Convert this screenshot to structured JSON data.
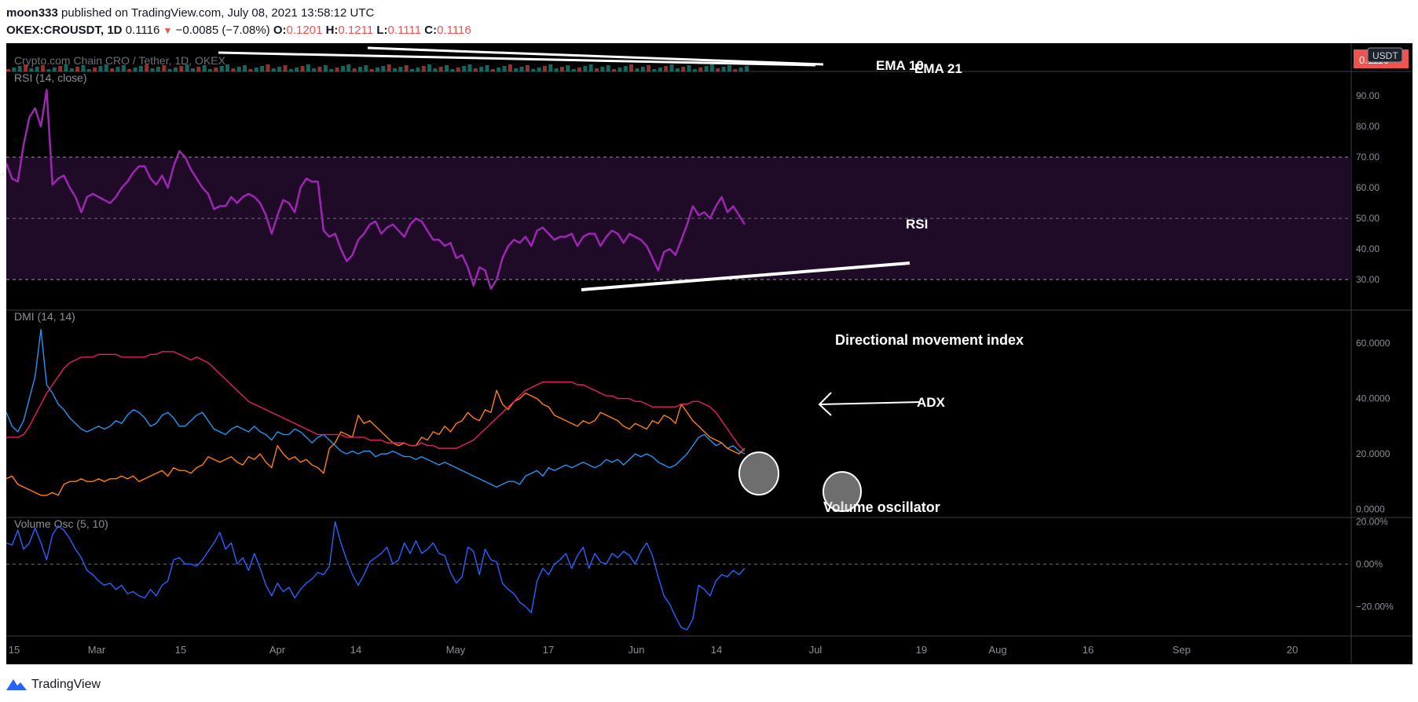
{
  "header": {
    "author": "moon333",
    "published": "published on TradingView.com, July 08, 2021 13:58:12 UTC",
    "symbol": "OKEX:CROUSDT, 1D",
    "last": "0.1116",
    "change": "−0.0085 (−7.08%)",
    "o_label": "O:",
    "o_value": "0.1201",
    "h_label": "H:",
    "h_value": "0.1211",
    "l_label": "L:",
    "l_value": "0.1111",
    "c_label": "C:",
    "c_value": "0.1116"
  },
  "price_pane": {
    "legend": "Crypto.com Chain CRO / Tether, 1D, OKEX",
    "ema_labels": [
      "EMA 10",
      "EMA 21"
    ],
    "currency_badge": "USDT",
    "price_badge": "0.1116"
  },
  "colors": {
    "background": "#000000",
    "rsi": "#9c27b0",
    "rsi_band": "#1f0a28",
    "dmi_plus": "#2196f3",
    "dmi_minus": "#ff7f0e",
    "adx": "#e91e63",
    "volosc": "#2962ff",
    "grid": "#2a2e39",
    "axis_text": "#8a8e98"
  },
  "x_axis": {
    "labels": [
      "15",
      "Mar",
      "15",
      "Apr",
      "14",
      "May",
      "17",
      "Jun",
      "14",
      "Jul",
      "19",
      "Aug",
      "16",
      "Sep",
      "20"
    ]
  },
  "annotations": {
    "rsi": "RSI",
    "dmi": "Directional movement index",
    "adx": "ADX",
    "volosc": "Volume oscillator"
  },
  "chart_data": [
    {
      "type": "line",
      "title": "RSI (14, close)",
      "ylim": [
        20,
        98
      ],
      "yticks": [
        "90.00",
        "80.00",
        "70.00",
        "60.00",
        "50.00",
        "40.00",
        "30.00"
      ],
      "ytick_values": [
        90,
        80,
        70,
        60,
        50,
        40,
        30
      ],
      "bands": [
        30,
        70
      ],
      "midline": 50,
      "series": [
        {
          "values": [
            68,
            63,
            62,
            74,
            83,
            86,
            80,
            92,
            61,
            63,
            64,
            60,
            57,
            52,
            57,
            58,
            57,
            56,
            55,
            57,
            60,
            62,
            65,
            67,
            67,
            63,
            61,
            64,
            60,
            67,
            72,
            70,
            66,
            63,
            60,
            58,
            53,
            54,
            54,
            57,
            55,
            57,
            58,
            57,
            55,
            51,
            45,
            51,
            56,
            55,
            52,
            60,
            63,
            62,
            62,
            46,
            44,
            45,
            40,
            36,
            38,
            43,
            45,
            48,
            49,
            45,
            47,
            48,
            46,
            44,
            48,
            50,
            49,
            46,
            43,
            43,
            41,
            42,
            37,
            38,
            34,
            28,
            34,
            33,
            27,
            30,
            37,
            41,
            43,
            42,
            44,
            41,
            46,
            47,
            45,
            43,
            44,
            44,
            45,
            41,
            44,
            45,
            45,
            41,
            44,
            46,
            45,
            42,
            45,
            44,
            43,
            41,
            37,
            33,
            39,
            40,
            38,
            43,
            48,
            54,
            51,
            52,
            50,
            54,
            57,
            52,
            54,
            51,
            48
          ]
        }
      ]
    },
    {
      "type": "line",
      "title": "DMI (14, 14)",
      "ylim": [
        -3,
        72
      ],
      "yticks": [
        "60.0000",
        "40.0000",
        "20.0000",
        "0.0000"
      ],
      "ytick_values": [
        60,
        40,
        20,
        0
      ],
      "series": [
        {
          "values": [
            35,
            30,
            28,
            32,
            40,
            48,
            65,
            45,
            42,
            38,
            36,
            33,
            31,
            29,
            28,
            29,
            30,
            29,
            30,
            32,
            31,
            34,
            36,
            35,
            33,
            30,
            31,
            34,
            35,
            33,
            30,
            30,
            32,
            34,
            35,
            32,
            29,
            28,
            27,
            29,
            30,
            29,
            28,
            30,
            28,
            27,
            25,
            28,
            27,
            27,
            29,
            28,
            26,
            24,
            26,
            27,
            25,
            23,
            21,
            20,
            21,
            20,
            21,
            21,
            19,
            20,
            20,
            21,
            20,
            19,
            19,
            18,
            19,
            18,
            17,
            16,
            17,
            16,
            15,
            14,
            13,
            12,
            11,
            10,
            9,
            8,
            9,
            10,
            10,
            9,
            12,
            13,
            14,
            12,
            15,
            14,
            15,
            16,
            15,
            16,
            17,
            16,
            15,
            16,
            18,
            17,
            18,
            16,
            18,
            20,
            19,
            20,
            19,
            17,
            16,
            15,
            16,
            18,
            20,
            23,
            26,
            27,
            25,
            23,
            24,
            22,
            23,
            21,
            20
          ]
        },
        {
          "values": [
            11,
            12,
            9,
            8,
            7,
            6,
            5,
            5,
            6,
            5,
            9,
            10,
            10,
            11,
            10,
            10,
            11,
            10,
            11,
            11,
            12,
            11,
            12,
            10,
            11,
            12,
            13,
            14,
            12,
            15,
            14,
            14,
            13,
            15,
            16,
            19,
            18,
            17,
            18,
            19,
            17,
            16,
            19,
            18,
            20,
            17,
            15,
            23,
            20,
            18,
            19,
            17,
            18,
            16,
            15,
            13,
            22,
            24,
            28,
            27,
            26,
            34,
            31,
            32,
            30,
            28,
            26,
            24,
            23,
            24,
            23,
            23,
            26,
            25,
            28,
            27,
            30,
            28,
            31,
            32,
            35,
            33,
            32,
            36,
            35,
            43,
            38,
            36,
            39,
            40,
            42,
            41,
            40,
            38,
            37,
            34,
            33,
            32,
            31,
            30,
            32,
            31,
            32,
            35,
            34,
            33,
            32,
            30,
            29,
            31,
            30,
            29,
            32,
            31,
            34,
            33,
            31,
            38,
            35,
            32,
            30,
            28,
            26,
            25,
            24,
            22,
            21,
            20,
            22
          ]
        },
        {
          "values": [
            26,
            26,
            26,
            27,
            30,
            34,
            38,
            42,
            45,
            48,
            51,
            53,
            54,
            55,
            55,
            55,
            56,
            56,
            56,
            56,
            55,
            55,
            55,
            55,
            55,
            56,
            56,
            57,
            57,
            57,
            56,
            55,
            54,
            55,
            54,
            53,
            51,
            49,
            47,
            45,
            43,
            41,
            39,
            38,
            37,
            36,
            35,
            34,
            33,
            32,
            31,
            30,
            29,
            28,
            27,
            27,
            27,
            27,
            27,
            26,
            26,
            26,
            26,
            25,
            25,
            25,
            24,
            24,
            24,
            24,
            23,
            23,
            24,
            23,
            23,
            22,
            22,
            22,
            22,
            23,
            24,
            25,
            27,
            29,
            31,
            33,
            35,
            37,
            39,
            41,
            43,
            44,
            45,
            46,
            46,
            46,
            46,
            46,
            46,
            45,
            45,
            44,
            43,
            42,
            41,
            41,
            40,
            40,
            40,
            39,
            39,
            38,
            37,
            37,
            37,
            37,
            37,
            38,
            38,
            39,
            39,
            38,
            37,
            35,
            32,
            29,
            26,
            23,
            21
          ]
        }
      ]
    },
    {
      "type": "line",
      "title": "Volume Osc (5, 10)",
      "ylim": [
        -34,
        22
      ],
      "yticks": [
        "20.00%",
        "0.00%",
        "−20.00%"
      ],
      "ytick_values": [
        20,
        0,
        -20
      ],
      "midline": 0,
      "series": [
        {
          "values": [
            10,
            9,
            16,
            7,
            10,
            17,
            10,
            2,
            14,
            18,
            16,
            12,
            7,
            3,
            -3,
            -5,
            -8,
            -10,
            -9,
            -12,
            -10,
            -14,
            -13,
            -15,
            -16,
            -12,
            -15,
            -10,
            -8,
            2,
            3,
            0,
            0,
            -1,
            2,
            6,
            10,
            15,
            7,
            10,
            0,
            3,
            -3,
            5,
            -2,
            -10,
            -15,
            -9,
            -13,
            -11,
            -16,
            -12,
            -9,
            -7,
            -4,
            -5,
            -1,
            20,
            10,
            2,
            -5,
            -10,
            -5,
            1,
            3,
            5,
            8,
            0,
            2,
            10,
            5,
            11,
            5,
            7,
            10,
            5,
            4,
            -4,
            -9,
            -6,
            8,
            6,
            -5,
            7,
            2,
            1,
            -9,
            -12,
            -14,
            -18,
            -20,
            -23,
            -8,
            -2,
            -5,
            0,
            2,
            5,
            -2,
            4,
            8,
            -2,
            5,
            1,
            0,
            5,
            3,
            6,
            4,
            0,
            6,
            10,
            4,
            -6,
            -15,
            -19,
            -25,
            -30,
            -31,
            -26,
            -10,
            -12,
            -15,
            -8,
            -5,
            -6,
            -3,
            -5,
            -2
          ]
        }
      ]
    }
  ]
}
